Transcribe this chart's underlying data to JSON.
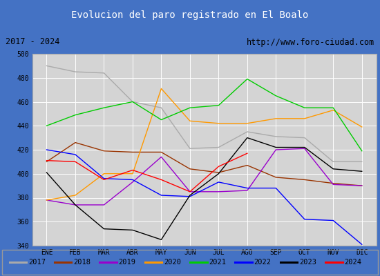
{
  "title": "Evolucion del paro registrado en El Boalo",
  "subtitle_left": "2017 - 2024",
  "subtitle_right": "http://www.foro-ciudad.com",
  "x_labels": [
    "ENE",
    "FEB",
    "MAR",
    "ABR",
    "MAY",
    "JUN",
    "JUL",
    "AGO",
    "SEP",
    "OCT",
    "NOV",
    "DIC"
  ],
  "ylim": [
    340,
    500
  ],
  "yticks": [
    340,
    360,
    380,
    400,
    420,
    440,
    460,
    480,
    500
  ],
  "series": {
    "2017": {
      "color": "#aaaaaa",
      "data": [
        490,
        485,
        484,
        460,
        455,
        421,
        422,
        435,
        431,
        430,
        410,
        410
      ]
    },
    "2018": {
      "color": "#993300",
      "data": [
        410,
        426,
        419,
        418,
        418,
        404,
        401,
        407,
        397,
        395,
        392,
        390
      ]
    },
    "2019": {
      "color": "#9900cc",
      "data": [
        378,
        374,
        374,
        393,
        414,
        385,
        385,
        386,
        420,
        421,
        391,
        390
      ]
    },
    "2020": {
      "color": "#ff9900",
      "data": [
        378,
        382,
        400,
        400,
        471,
        444,
        442,
        442,
        446,
        446,
        453,
        439
      ]
    },
    "2021": {
      "color": "#00cc00",
      "data": [
        440,
        449,
        455,
        460,
        445,
        455,
        457,
        479,
        465,
        455,
        455,
        419
      ]
    },
    "2022": {
      "color": "#0000ff",
      "data": [
        420,
        416,
        396,
        395,
        382,
        381,
        393,
        388,
        388,
        362,
        361,
        341
      ]
    },
    "2023": {
      "color": "#000000",
      "data": [
        401,
        374,
        354,
        353,
        345,
        382,
        400,
        430,
        422,
        422,
        404,
        402
      ]
    },
    "2024": {
      "color": "#ff0000",
      "data": [
        411,
        410,
        395,
        403,
        395,
        385,
        406,
        417,
        null,
        null,
        null,
        null
      ]
    }
  },
  "title_bg_color": "#4472c4",
  "title_text_color": "#ffffff",
  "subtitle_bg_color": "#e8e8e8",
  "plot_bg_color": "#d4d4d4",
  "grid_color": "#ffffff",
  "legend_bg_color": "#f0f0f0"
}
